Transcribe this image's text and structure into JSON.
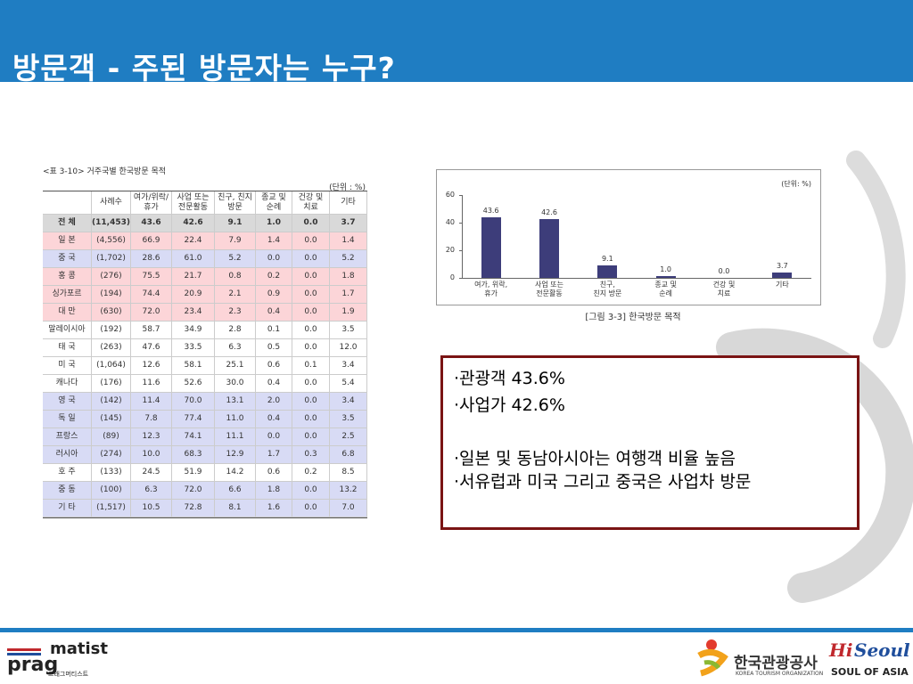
{
  "header": {
    "title": "방문객 - 주된 방문자는 누구?"
  },
  "table": {
    "caption": "<표 3-10> 거주국별 한국방문 목적",
    "unit": "(단위 : %)",
    "columns": [
      "",
      "사례수",
      "여가/위락/\n휴가",
      "사업 또는\n전문활동",
      "친구, 친지\n방문",
      "종교 및\n순례",
      "건강 및\n치료",
      "기타"
    ],
    "rows": [
      [
        "전 체",
        "(11,453)",
        "43.6",
        "42.6",
        "9.1",
        "1.0",
        "0.0",
        "3.7"
      ],
      [
        "일 본",
        "(4,556)",
        "66.9",
        "22.4",
        "7.9",
        "1.4",
        "0.0",
        "1.4"
      ],
      [
        "중 국",
        "(1,702)",
        "28.6",
        "61.0",
        "5.2",
        "0.0",
        "0.0",
        "5.2"
      ],
      [
        "홍 콩",
        "(276)",
        "75.5",
        "21.7",
        "0.8",
        "0.2",
        "0.0",
        "1.8"
      ],
      [
        "싱가포르",
        "(194)",
        "74.4",
        "20.9",
        "2.1",
        "0.9",
        "0.0",
        "1.7"
      ],
      [
        "대 만",
        "(630)",
        "72.0",
        "23.4",
        "2.3",
        "0.4",
        "0.0",
        "1.9"
      ],
      [
        "말레이시아",
        "(192)",
        "58.7",
        "34.9",
        "2.8",
        "0.1",
        "0.0",
        "3.5"
      ],
      [
        "태 국",
        "(263)",
        "47.6",
        "33.5",
        "6.3",
        "0.5",
        "0.0",
        "12.0"
      ],
      [
        "미 국",
        "(1,064)",
        "12.6",
        "58.1",
        "25.1",
        "0.6",
        "0.1",
        "3.4"
      ],
      [
        "캐나다",
        "(176)",
        "11.6",
        "52.6",
        "30.0",
        "0.4",
        "0.0",
        "5.4"
      ],
      [
        "영 국",
        "(142)",
        "11.4",
        "70.0",
        "13.1",
        "2.0",
        "0.0",
        "3.4"
      ],
      [
        "독 일",
        "(145)",
        "7.8",
        "77.4",
        "11.0",
        "0.4",
        "0.0",
        "3.5"
      ],
      [
        "프랑스",
        "(89)",
        "12.3",
        "74.1",
        "11.1",
        "0.0",
        "0.0",
        "2.5"
      ],
      [
        "러시아",
        "(274)",
        "10.0",
        "68.3",
        "12.9",
        "1.7",
        "0.3",
        "6.8"
      ],
      [
        "호 주",
        "(133)",
        "24.5",
        "51.9",
        "14.2",
        "0.6",
        "0.2",
        "8.5"
      ],
      [
        "중 동",
        "(100)",
        "6.3",
        "72.0",
        "6.6",
        "1.8",
        "0.0",
        "13.2"
      ],
      [
        "기 타",
        "(1,517)",
        "10.5",
        "72.8",
        "8.1",
        "1.6",
        "0.0",
        "7.0"
      ]
    ]
  },
  "chart_data": {
    "type": "bar",
    "unit": "(단위: %)",
    "caption": "[그림 3-3] 한국방문 목적",
    "categories": [
      "여가, 위락,\n휴가",
      "사업 또는\n전문활동",
      "친구,\n친지 방문",
      "종교 및\n순례",
      "건강 및\n치료",
      "기타"
    ],
    "values": [
      43.6,
      42.6,
      9.1,
      1.0,
      0.0,
      3.7
    ],
    "value_labels": [
      "43.6",
      "42.6",
      "9.1",
      "1.0",
      "0.0",
      "3.7"
    ],
    "color": "#3d3d7a",
    "ylim": [
      0,
      60
    ],
    "yticks": [
      0,
      20,
      40,
      60
    ]
  },
  "bullets": [
    "·관광객 43.6%",
    "·사업가 42.6%",
    "·일본 및 동남아시아는 여행객 비율 높음",
    "·서유럽과 미국 그리고 중국은 사업차 방문"
  ],
  "footer": {
    "brand_left_a": "prag",
    "brand_left_b": "matist",
    "brand_left_sub": "프래그머티스트",
    "kto_name": "한국관광공사",
    "kto_sub": "KOREA TOURISM ORGANIZATION",
    "hiseoul_a": "Hi",
    "hiseoul_b": "Seoul",
    "hiseoul_sub": "SOUL OF ASIA"
  }
}
